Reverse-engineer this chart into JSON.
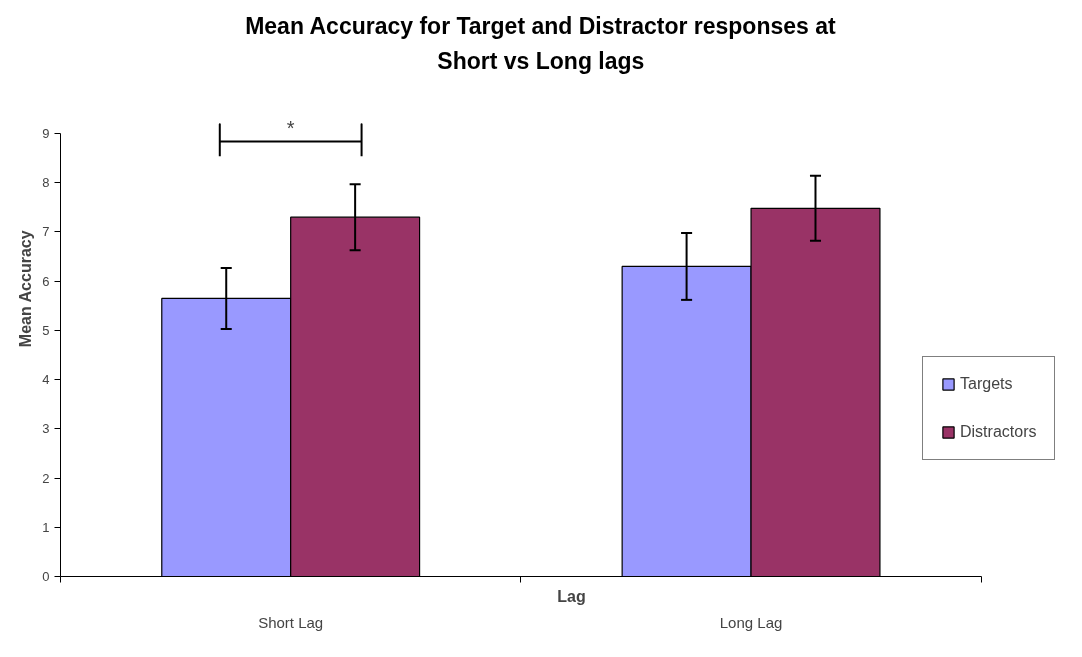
{
  "chart_data": {
    "type": "bar",
    "title": "Mean Accuracy for Target and Distractor responses at\nShort vs Long lags",
    "xlabel": "Lag",
    "ylabel": "Mean Accuracy",
    "categories": [
      "Short Lag",
      "Long Lag"
    ],
    "series": [
      {
        "name": "Targets",
        "color": "#9999ff",
        "values": [
          5.65,
          6.3
        ],
        "errors": [
          0.62,
          0.68
        ]
      },
      {
        "name": "Distractors",
        "color": "#993366",
        "values": [
          7.3,
          7.48
        ],
        "errors": [
          0.67,
          0.66
        ]
      }
    ],
    "ylim": [
      0,
      9
    ],
    "yticks": [
      0,
      1,
      2,
      3,
      4,
      5,
      6,
      7,
      8,
      9
    ],
    "grid": false,
    "legend": "right",
    "annotations": [
      "*"
    ]
  }
}
